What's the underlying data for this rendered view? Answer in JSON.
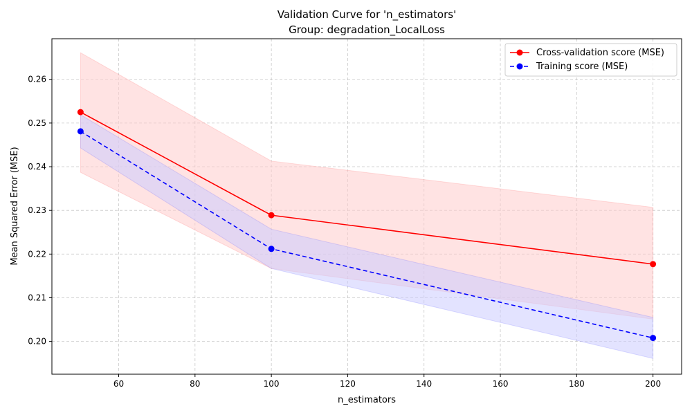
{
  "chart_data": {
    "type": "line",
    "title": "Validation Curve for 'n_estimators'",
    "subtitle": "Group: degradation_LocalLoss",
    "xlabel": "n_estimators",
    "ylabel": "Mean Squared Error (MSE)",
    "xlim": [
      42.5,
      207.5
    ],
    "ylim": [
      0.1925,
      0.2693
    ],
    "xticks": [
      60,
      80,
      100,
      120,
      140,
      160,
      180,
      200
    ],
    "yticks": [
      0.2,
      0.21,
      0.22,
      0.23,
      0.24,
      0.25,
      0.26
    ],
    "x": [
      50,
      100,
      200
    ],
    "grid": true,
    "legend_position": "top-right",
    "series": [
      {
        "name": "Cross-validation score (MSE)",
        "values": [
          0.2525,
          0.2289,
          0.2177
        ],
        "band_upper": [
          0.2661,
          0.2413,
          0.2307
        ],
        "band_lower": [
          0.2387,
          0.2167,
          0.2051
        ],
        "color": "#ff0000",
        "band_color": "#ffcccc",
        "line_style": "solid",
        "marker": "circle"
      },
      {
        "name": "Training score (MSE)",
        "values": [
          0.2481,
          0.2212,
          0.2008
        ],
        "band_upper": [
          0.2519,
          0.2257,
          0.2055
        ],
        "band_lower": [
          0.2443,
          0.2167,
          0.1961
        ],
        "color": "#0000ff",
        "band_color": "#ccccff",
        "line_style": "dashed",
        "marker": "circle"
      }
    ]
  }
}
